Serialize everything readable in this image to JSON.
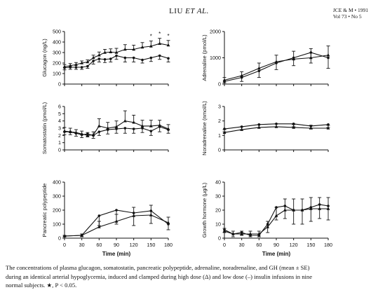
{
  "header": {
    "authors": "LIU",
    "authors_italic": "ET AL.",
    "journal": "JCE & M • 1991",
    "volume": "Vol 73 • No 5"
  },
  "caption": {
    "line1": "The concentrations of plasma glucagon, somatostatin, pancreatic polypeptide, adrenaline, noradrenaline, and GH (mean ± SE)",
    "line2": "during an identical arterial hypoglycemia, induced and clamped during high dose (Δ) and low dose (–) insulin infusions in nine",
    "line3": "normal subjects. ★, P < 0.05."
  },
  "chart_data": [
    {
      "type": "line",
      "ylabel": "Glucagon  (ng/L)",
      "xlabel": "",
      "ylim": [
        0,
        500
      ],
      "yticks": [
        0,
        100,
        200,
        300,
        400,
        500
      ],
      "x": [
        0,
        10,
        20,
        30,
        40,
        50,
        60,
        70,
        80,
        90,
        105,
        120,
        135,
        150,
        165,
        180
      ],
      "series": [
        {
          "marker": "triangle",
          "values": [
            165,
            175,
            185,
            200,
            210,
            250,
            275,
            300,
            305,
            300,
            330,
            330,
            350,
            360,
            385,
            370
          ],
          "errors": [
            20,
            20,
            20,
            20,
            20,
            25,
            30,
            30,
            30,
            40,
            45,
            40,
            45,
            50,
            50,
            45
          ]
        },
        {
          "marker": "dot",
          "values": [
            155,
            160,
            160,
            160,
            170,
            220,
            240,
            235,
            240,
            270,
            250,
            250,
            230,
            250,
            270,
            245
          ],
          "errors": [
            20,
            20,
            20,
            20,
            20,
            30,
            30,
            30,
            30,
            35,
            40,
            40,
            30,
            35,
            35,
            35
          ]
        }
      ],
      "annotations": [
        "*",
        "*",
        "*"
      ],
      "annotation_x": [
        150,
        165,
        180
      ]
    },
    {
      "type": "line",
      "ylabel": "Adrenaline  (pmol/L)",
      "xlabel": "",
      "ylim": [
        0,
        2000
      ],
      "yticks": [
        0,
        1000,
        2000
      ],
      "x": [
        0,
        30,
        60,
        90,
        120,
        150,
        180
      ],
      "series": [
        {
          "marker": "triangle",
          "values": [
            150,
            320,
            600,
            850,
            950,
            1000,
            1100
          ],
          "errors": [
            100,
            150,
            200,
            250,
            300,
            350,
            350
          ]
        },
        {
          "marker": "dot",
          "values": [
            100,
            250,
            500,
            800,
            1000,
            1200,
            1000
          ],
          "errors": [
            50,
            150,
            250,
            250,
            300,
            400,
            400
          ]
        }
      ]
    },
    {
      "type": "line",
      "ylabel": "Somatostatin  (pmol/L)",
      "xlabel": "",
      "ylim": [
        0,
        6
      ],
      "yticks": [
        0,
        1,
        2,
        3,
        4,
        5,
        6
      ],
      "x": [
        0,
        10,
        20,
        30,
        40,
        50,
        60,
        75,
        90,
        105,
        120,
        135,
        150,
        165,
        180
      ],
      "series": [
        {
          "marker": "triangle",
          "values": [
            2.6,
            2.5,
            2.4,
            2.2,
            2.0,
            2.1,
            3.3,
            3.0,
            3.2,
            4.0,
            3.8,
            3.3,
            3.3,
            3.4,
            2.9
          ],
          "errors": [
            0.5,
            0.5,
            0.4,
            0.4,
            0.4,
            0.4,
            1.0,
            0.8,
            0.8,
            1.4,
            1.0,
            0.8,
            0.8,
            0.7,
            0.6
          ]
        },
        {
          "marker": "dot",
          "values": [
            2.5,
            2.5,
            2.3,
            2.1,
            2.2,
            2.0,
            2.5,
            2.8,
            2.9,
            3.0,
            2.9,
            3.0,
            2.6,
            3.2,
            2.8
          ],
          "errors": [
            0.4,
            0.4,
            0.4,
            0.4,
            0.4,
            0.4,
            0.5,
            0.6,
            0.6,
            0.7,
            0.6,
            0.6,
            0.6,
            0.7,
            0.5
          ]
        }
      ]
    },
    {
      "type": "line",
      "ylabel": "Noradrenaline  (nmol/L)",
      "xlabel": "",
      "ylim": [
        0,
        3
      ],
      "yticks": [
        0,
        1,
        2,
        3
      ],
      "x": [
        0,
        30,
        60,
        90,
        120,
        150,
        180
      ],
      "series": [
        {
          "marker": "triangle",
          "values": [
            1.2,
            1.4,
            1.55,
            1.6,
            1.55,
            1.5,
            1.5
          ],
          "errors": [
            0.2,
            0.2,
            0.2,
            0.2,
            0.2,
            0.2,
            0.2
          ]
        },
        {
          "marker": "dot",
          "values": [
            1.45,
            1.6,
            1.75,
            1.8,
            1.8,
            1.65,
            1.75
          ],
          "errors": [
            0.2,
            0.2,
            0.2,
            0.2,
            0.2,
            0.2,
            0.2
          ]
        }
      ]
    },
    {
      "type": "line",
      "ylabel": "Pancreatic  polypeptide",
      "xlabel": "Time  (min)",
      "ylim": [
        0,
        400
      ],
      "yticks": [
        0,
        100,
        200,
        300,
        400
      ],
      "xticks": [
        0,
        30,
        60,
        90,
        120,
        150,
        180
      ],
      "x": [
        0,
        30,
        60,
        90,
        120,
        150,
        180
      ],
      "series": [
        {
          "marker": "triangle",
          "values": [
            15,
            20,
            80,
            120,
            160,
            165,
            110
          ],
          "errors": [
            5,
            10,
            40,
            50,
            60,
            70,
            40
          ]
        },
        {
          "marker": "dot",
          "values": [
            15,
            20,
            160,
            200,
            180,
            195,
            100
          ],
          "errors": [
            5,
            10,
            70,
            100,
            90,
            90,
            40
          ]
        }
      ]
    },
    {
      "type": "line",
      "ylabel": "Growth  hormone  (μg/L)",
      "xlabel": "Time  (min)",
      "ylim": [
        0,
        40
      ],
      "yticks": [
        0,
        10,
        20,
        30,
        40
      ],
      "xticks": [
        0,
        30,
        60,
        90,
        120,
        150,
        180
      ],
      "x": [
        0,
        15,
        30,
        45,
        60,
        75,
        90,
        105,
        120,
        135,
        150,
        165,
        180
      ],
      "series": [
        {
          "marker": "triangle",
          "values": [
            5,
            3,
            3,
            3,
            3,
            8,
            16,
            20,
            20,
            20,
            21,
            21,
            21
          ],
          "errors": [
            2,
            2,
            2,
            2,
            2,
            4,
            6,
            8,
            8,
            8,
            8,
            8,
            8
          ]
        },
        {
          "marker": "dot",
          "values": [
            6,
            3,
            4,
            2,
            2,
            10,
            22,
            23,
            20,
            20,
            22,
            24,
            23
          ],
          "errors": [
            2,
            2,
            2,
            1,
            1,
            6,
            9,
            9,
            10,
            10,
            10,
            10,
            10
          ]
        }
      ]
    }
  ]
}
